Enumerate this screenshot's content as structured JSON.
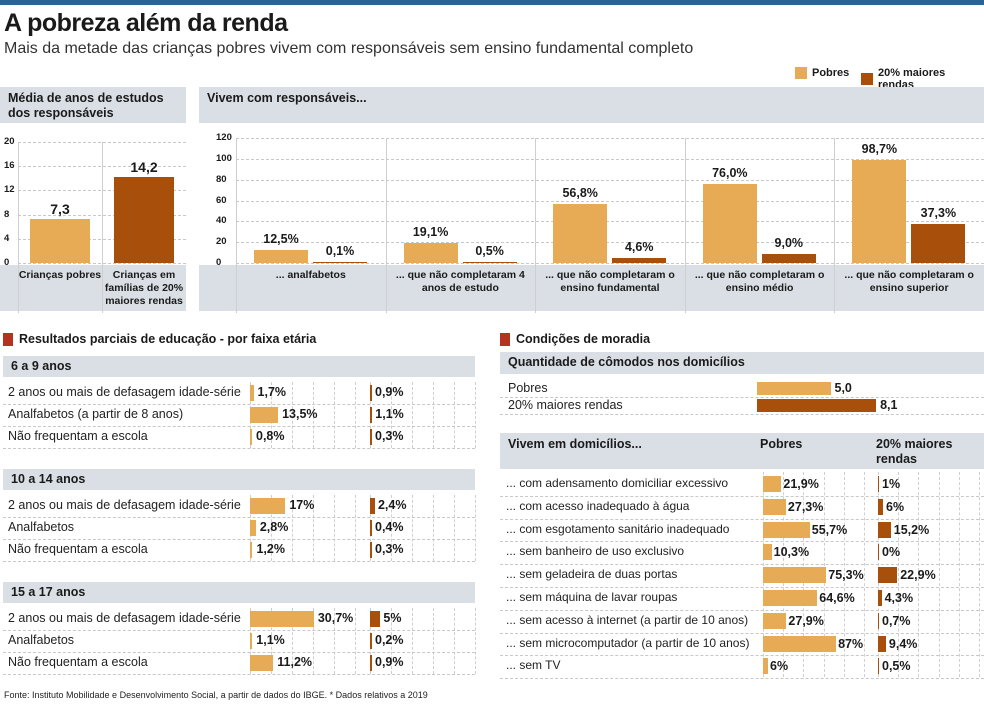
{
  "title": "A pobreza além da renda",
  "subtitle": "Mais da metade das crianças pobres vivem com responsáveis sem ensino fundamental completo",
  "colors": {
    "pobres": "#e8ab55",
    "ricos": "#a84f0c",
    "panel": "#d9dfe5",
    "accent": "#b5331e",
    "topbar": "#2a6496"
  },
  "legend": {
    "pobres": "Pobres",
    "ricos": "20% maiores rendas"
  },
  "chart_data": [
    {
      "type": "bar",
      "title": "Média de anos de estudos dos responsáveis",
      "ylim": [
        0,
        20
      ],
      "yticks": [
        "0",
        "4",
        "8",
        "12",
        "16",
        "20"
      ],
      "categories": [
        "Crianças pobres",
        "Crianças em famílias de 20% maiores rendas"
      ],
      "values": [
        7.3,
        14.2
      ],
      "labels": [
        "7,3",
        "14,2"
      ]
    },
    {
      "type": "bar",
      "title": "Vivem com responsáveis...",
      "ylim": [
        0,
        120
      ],
      "yticks": [
        "0",
        "20",
        "40",
        "60",
        "80",
        "100",
        "120"
      ],
      "categories": [
        "... analfabetos",
        "... que não completaram 4 anos de estudo",
        "... que não completaram o ensino fundamental",
        "... que não completaram o ensino médio",
        "... que não completaram o ensino superior"
      ],
      "series": [
        {
          "name": "Pobres",
          "values": [
            12.5,
            19.1,
            56.8,
            76.0,
            98.7
          ],
          "labels": [
            "12,5%",
            "19,1%",
            "56,8%",
            "76,0%",
            "98,7%"
          ]
        },
        {
          "name": "20% maiores rendas",
          "values": [
            0.1,
            0.5,
            4.6,
            9.0,
            37.3
          ],
          "labels": [
            "0,1%",
            "0,5%",
            "4,6%",
            "9,0%",
            "37,3%"
          ]
        }
      ]
    },
    {
      "type": "bar",
      "orientation": "horizontal",
      "title": "Resultados parciais de educação - por faixa etária",
      "groups": [
        {
          "name": "6 a 9 anos",
          "rows": [
            {
              "label": "2 anos ou mais de defasagem idade-série",
              "pobres": 1.7,
              "ricos": 0.9,
              "pl": "1,7%",
              "rl": "0,9%"
            },
            {
              "label": "Analfabetos (a partir de 8 anos)",
              "pobres": 13.5,
              "ricos": 1.1,
              "pl": "13,5%",
              "rl": "1,1%"
            },
            {
              "label": "Não frequentam a escola",
              "pobres": 0.8,
              "ricos": 0.3,
              "pl": "0,8%",
              "rl": "0,3%"
            }
          ]
        },
        {
          "name": "10 a 14 anos",
          "rows": [
            {
              "label": "2 anos ou mais de defasagem idade-série",
              "pobres": 17,
              "ricos": 2.4,
              "pl": "17%",
              "rl": "2,4%"
            },
            {
              "label": "Analfabetos",
              "pobres": 2.8,
              "ricos": 0.4,
              "pl": "2,8%",
              "rl": "0,4%"
            },
            {
              "label": "Não frequentam a escola",
              "pobres": 1.2,
              "ricos": 0.3,
              "pl": "1,2%",
              "rl": "0,3%"
            }
          ]
        },
        {
          "name": "15 a 17 anos",
          "rows": [
            {
              "label": "2 anos ou mais de defasagem idade-série",
              "pobres": 30.7,
              "ricos": 5,
              "pl": "30,7%",
              "rl": "5%"
            },
            {
              "label": "Analfabetos",
              "pobres": 1.1,
              "ricos": 0.2,
              "pl": "1,1%",
              "rl": "0,2%"
            },
            {
              "label": "Não frequentam a escola",
              "pobres": 11.2,
              "ricos": 0.9,
              "pl": "11,2%",
              "rl": "0,9%"
            }
          ]
        }
      ]
    },
    {
      "type": "bar",
      "orientation": "horizontal",
      "title": "Quantidade de cômodos nos domicílios",
      "categories": [
        "Pobres",
        "20% maiores rendas"
      ],
      "values": [
        5.0,
        8.1
      ],
      "labels": [
        "5,0",
        "8,1"
      ]
    },
    {
      "type": "bar",
      "orientation": "horizontal",
      "title": "Vivem em domicílios...",
      "col_pobres": "Pobres",
      "col_ricos": "20% maiores rendas",
      "rows": [
        {
          "label": "... com adensamento domiciliar excessivo",
          "pobres": 21.9,
          "ricos": 1,
          "pl": "21,9%",
          "rl": "1%"
        },
        {
          "label": "... com acesso inadequado à água",
          "pobres": 27.3,
          "ricos": 6,
          "pl": "27,3%",
          "rl": "6%"
        },
        {
          "label": "... com esgotamento sanitário inadequado",
          "pobres": 55.7,
          "ricos": 15.2,
          "pl": "55,7%",
          "rl": "15,2%"
        },
        {
          "label": "... sem banheiro de uso exclusivo",
          "pobres": 10.3,
          "ricos": 0,
          "pl": "10,3%",
          "rl": "0%"
        },
        {
          "label": "... sem geladeira de duas portas",
          "pobres": 75.3,
          "ricos": 22.9,
          "pl": "75,3%",
          "rl": "22,9%"
        },
        {
          "label": "... sem máquina de lavar roupas",
          "pobres": 64.6,
          "ricos": 4.3,
          "pl": "64,6%",
          "rl": "4,3%"
        },
        {
          "label": "... sem acesso à internet (a partir de 10 anos)",
          "pobres": 27.9,
          "ricos": 0.7,
          "pl": "27,9%",
          "rl": "0,7%"
        },
        {
          "label": "... sem microcomputador (a partir de 10 anos)",
          "pobres": 87,
          "ricos": 9.4,
          "pl": "87%",
          "rl": "9,4%"
        },
        {
          "label": "... sem TV",
          "pobres": 6,
          "ricos": 0.5,
          "pl": "6%",
          "rl": "0,5%"
        }
      ]
    }
  ],
  "sections": {
    "educacao": "Resultados parciais de educação - por faixa etária",
    "moradia": "Condições de moradia"
  },
  "footer": "Fonte: Instituto Mobilidade e Desenvolvimento Social, a partir de dados do IBGE. * Dados relativos a 2019"
}
